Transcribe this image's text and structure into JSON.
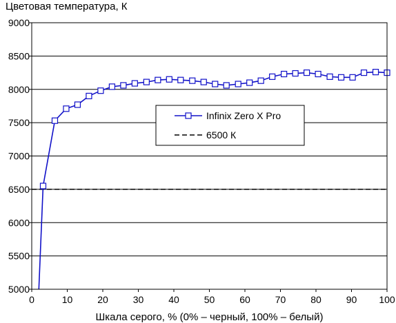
{
  "chart_data": {
    "type": "line",
    "title": "Цветовая температура, К",
    "xlabel": "Шкала серого, % (0% – черный, 100% – белый)",
    "ylabel": "",
    "xlim": [
      0,
      100
    ],
    "ylim": [
      5000,
      9000
    ],
    "x_ticks": [
      0,
      10,
      20,
      30,
      40,
      50,
      60,
      70,
      80,
      90,
      100
    ],
    "y_ticks": [
      5000,
      5500,
      6000,
      6500,
      7000,
      7500,
      8000,
      8500,
      9000
    ],
    "grid": "horizontal",
    "legend_position": "center-right",
    "series": [
      {
        "name": "Infinix Zero X Pro",
        "color": "#1010c8",
        "marker": "square",
        "style": "solid",
        "x": [
          2,
          3.2,
          6.5,
          9.7,
          12.9,
          16.1,
          19.4,
          22.6,
          25.8,
          29.0,
          32.3,
          35.5,
          38.7,
          41.9,
          45.2,
          48.4,
          51.6,
          54.8,
          58.1,
          61.3,
          64.5,
          67.7,
          71.0,
          74.2,
          77.4,
          80.6,
          83.9,
          87.1,
          90.3,
          93.5,
          96.8,
          100
        ],
        "values": [
          5000,
          6550,
          7530,
          7710,
          7770,
          7900,
          7980,
          8040,
          8060,
          8090,
          8110,
          8140,
          8150,
          8140,
          8130,
          8110,
          8080,
          8060,
          8080,
          8100,
          8130,
          8190,
          8230,
          8240,
          8250,
          8230,
          8190,
          8180,
          8180,
          8250,
          8260,
          8250
        ]
      },
      {
        "name": "6500 К",
        "color": "#000000",
        "marker": "none",
        "style": "dashed",
        "x": [
          0,
          100
        ],
        "values": [
          6500,
          6500
        ]
      }
    ]
  }
}
